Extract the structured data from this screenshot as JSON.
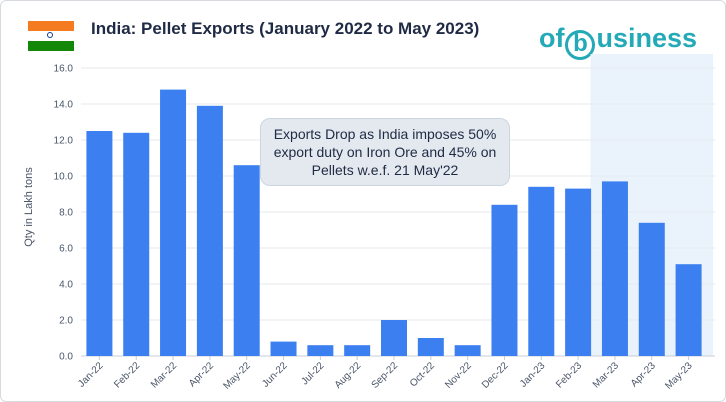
{
  "header": {
    "title": "India: Pellet Exports (January 2022 to May 2023)",
    "brand": {
      "prefix": "of",
      "mark": "b",
      "suffix": "usiness",
      "color": "#24aab7"
    },
    "flag_icon": "india-flag-icon"
  },
  "annotation": {
    "text": "Exports Drop as India imposes 50% export duty on Iron Ore and 45% on Pellets w.e.f. 21 May'22"
  },
  "chart_data": {
    "type": "bar",
    "title": "India: Pellet Exports (January 2022 to May 2023)",
    "xlabel": "",
    "ylabel": "Qty in Lakh tons",
    "ylim": [
      0,
      16
    ],
    "yticks": [
      "0.0",
      "2.0",
      "4.0",
      "6.0",
      "8.0",
      "10.0",
      "12.0",
      "14.0",
      "16.0"
    ],
    "grid": true,
    "bar_color": "#3b7ff0",
    "highlight_band": {
      "from": "Mar-23",
      "to": "May-23",
      "color": "#eaf3fc"
    },
    "categories": [
      "Jan-22",
      "Feb-22",
      "Mar-22",
      "Apr-22",
      "May-22",
      "Jun-22",
      "Jul-22",
      "Aug-22",
      "Sep-22",
      "Oct-22",
      "Nov-22",
      "Dec-22",
      "Jan-23",
      "Feb-23",
      "Mar-23",
      "Apr-23",
      "May-23"
    ],
    "values": [
      12.5,
      12.4,
      14.8,
      13.9,
      10.6,
      0.8,
      0.6,
      0.6,
      2.0,
      1.0,
      0.6,
      8.4,
      9.4,
      9.3,
      9.7,
      7.4,
      5.1
    ]
  }
}
